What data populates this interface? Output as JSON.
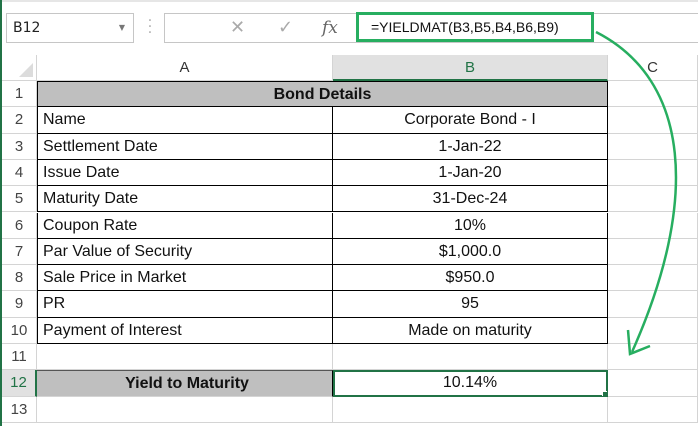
{
  "name_box": {
    "value": "B12"
  },
  "formula_bar": {
    "formula": "=YIELDMAT(B3,B5,B4,B6,B9)",
    "cancel_icon": "x-icon",
    "enter_icon": "check-icon",
    "fx_label": "fx"
  },
  "columns": [
    "A",
    "B",
    "C"
  ],
  "selected_column": "B",
  "selected_row": "12",
  "rows": [
    {
      "n": "1",
      "a": "Bond Details",
      "b": "",
      "type": "header"
    },
    {
      "n": "2",
      "a": "Name",
      "b": "Corporate Bond - I"
    },
    {
      "n": "3",
      "a": "Settlement Date",
      "b": "1-Jan-22"
    },
    {
      "n": "4",
      "a": "Issue Date",
      "b": "1-Jan-20"
    },
    {
      "n": "5",
      "a": "Maturity Date",
      "b": "31-Dec-24"
    },
    {
      "n": "6",
      "a": "Coupon Rate",
      "b": "10%"
    },
    {
      "n": "7",
      "a": "Par Value of Security",
      "b": "$1,000.0"
    },
    {
      "n": "8",
      "a": "Sale Price in Market",
      "b": "$950.0"
    },
    {
      "n": "9",
      "a": "PR",
      "b": "95"
    },
    {
      "n": "10",
      "a": "Payment of Interest",
      "b": "Made on maturity"
    },
    {
      "n": "11",
      "a": "",
      "b": "",
      "type": "empty"
    },
    {
      "n": "12",
      "a": "Yield to Maturity",
      "b": "10.14%",
      "type": "result"
    },
    {
      "n": "13",
      "a": "",
      "b": "",
      "type": "empty"
    }
  ],
  "colors": {
    "accent": "#217346",
    "annotation": "#27ae60",
    "header_fill": "#bfbfbf"
  }
}
